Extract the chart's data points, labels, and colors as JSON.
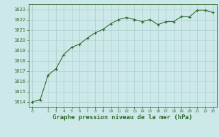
{
  "x": [
    0,
    1,
    2,
    3,
    4,
    5,
    6,
    7,
    8,
    9,
    10,
    11,
    12,
    13,
    14,
    15,
    16,
    17,
    18,
    19,
    20,
    21,
    22,
    23
  ],
  "y": [
    1014.0,
    1014.2,
    1016.6,
    1017.2,
    1018.6,
    1019.3,
    1019.6,
    1020.2,
    1020.7,
    1021.05,
    1021.6,
    1022.0,
    1022.2,
    1022.0,
    1021.8,
    1022.0,
    1021.5,
    1021.8,
    1021.8,
    1022.3,
    1022.25,
    1022.9,
    1022.9,
    1022.7
  ],
  "line_color": "#2d6a2d",
  "marker": "+",
  "marker_color": "#2d6a2d",
  "bg_color": "#cce8e8",
  "grid_color": "#aacfcf",
  "xlabel": "Graphe pression niveau de la mer (hPa)",
  "xlabel_color": "#2d6a2d",
  "tick_color": "#2d6a2d",
  "spine_color": "#2d6a2d",
  "ylim": [
    1013.5,
    1023.5
  ],
  "yticks": [
    1014,
    1015,
    1016,
    1017,
    1018,
    1019,
    1020,
    1021,
    1022,
    1023
  ],
  "xticks": [
    0,
    2,
    3,
    4,
    5,
    6,
    7,
    8,
    9,
    10,
    11,
    12,
    13,
    14,
    15,
    16,
    17,
    18,
    19,
    20,
    21,
    22,
    23
  ],
  "xlim": [
    -0.5,
    23.5
  ]
}
